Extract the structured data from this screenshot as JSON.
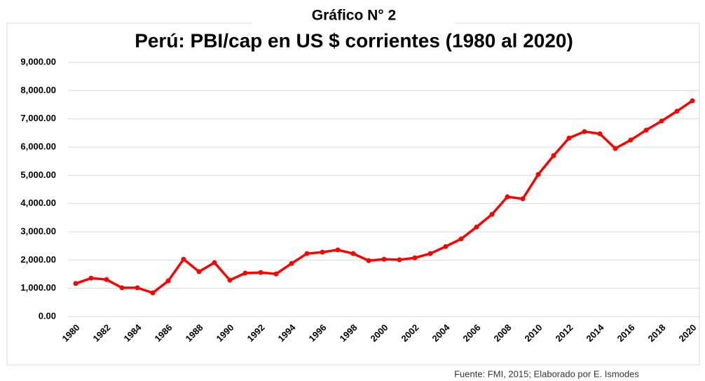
{
  "chart_data": {
    "type": "line",
    "header": "Gráfico  N° 2",
    "title": "Perú: PBI/cap en US $ corrientes (1980 al 2020)",
    "source": "Fuente: FMI, 2015; Elaborado por E. Ismodes",
    "categories": [
      "1980",
      null,
      "1982",
      null,
      "1984",
      null,
      "1986",
      null,
      "1988",
      null,
      "1990",
      null,
      "1992",
      null,
      "1994",
      null,
      "1996",
      null,
      "1998",
      null,
      "2000",
      null,
      "2002",
      null,
      "2004",
      null,
      "2006",
      null,
      "2008",
      null,
      "2010",
      null,
      "2012",
      null,
      "2014",
      null,
      "2016",
      null,
      "2018",
      null,
      "2020"
    ],
    "series": [
      {
        "name": "PBI/cap",
        "color": "#ff0000",
        "values": [
          1170,
          1360,
          1310,
          1020,
          1020,
          840,
          1260,
          2030,
          1590,
          1910,
          1290,
          1540,
          1560,
          1510,
          1880,
          2230,
          2280,
          2360,
          2230,
          1980,
          2030,
          2010,
          2080,
          2230,
          2480,
          2750,
          3170,
          3620,
          4240,
          4170,
          5030,
          5700,
          6320,
          6550,
          6470,
          5950,
          6250,
          6600,
          6920,
          7270,
          7640
        ]
      }
    ],
    "ylim": [
      0,
      9000
    ],
    "yticks": [
      {
        "value": 0,
        "label": "0.00"
      },
      {
        "value": 1000,
        "label": "1,000.00"
      },
      {
        "value": 2000,
        "label": "2,000.00"
      },
      {
        "value": 3000,
        "label": "3,000.00"
      },
      {
        "value": 4000,
        "label": "4,000.00"
      },
      {
        "value": 5000,
        "label": "5,000.00"
      },
      {
        "value": 6000,
        "label": "6,000.00"
      },
      {
        "value": 7000,
        "label": "7,000.00"
      },
      {
        "value": 8000,
        "label": "8,000.00"
      },
      {
        "value": 9000,
        "label": "9,000.00"
      }
    ],
    "grid": true
  }
}
